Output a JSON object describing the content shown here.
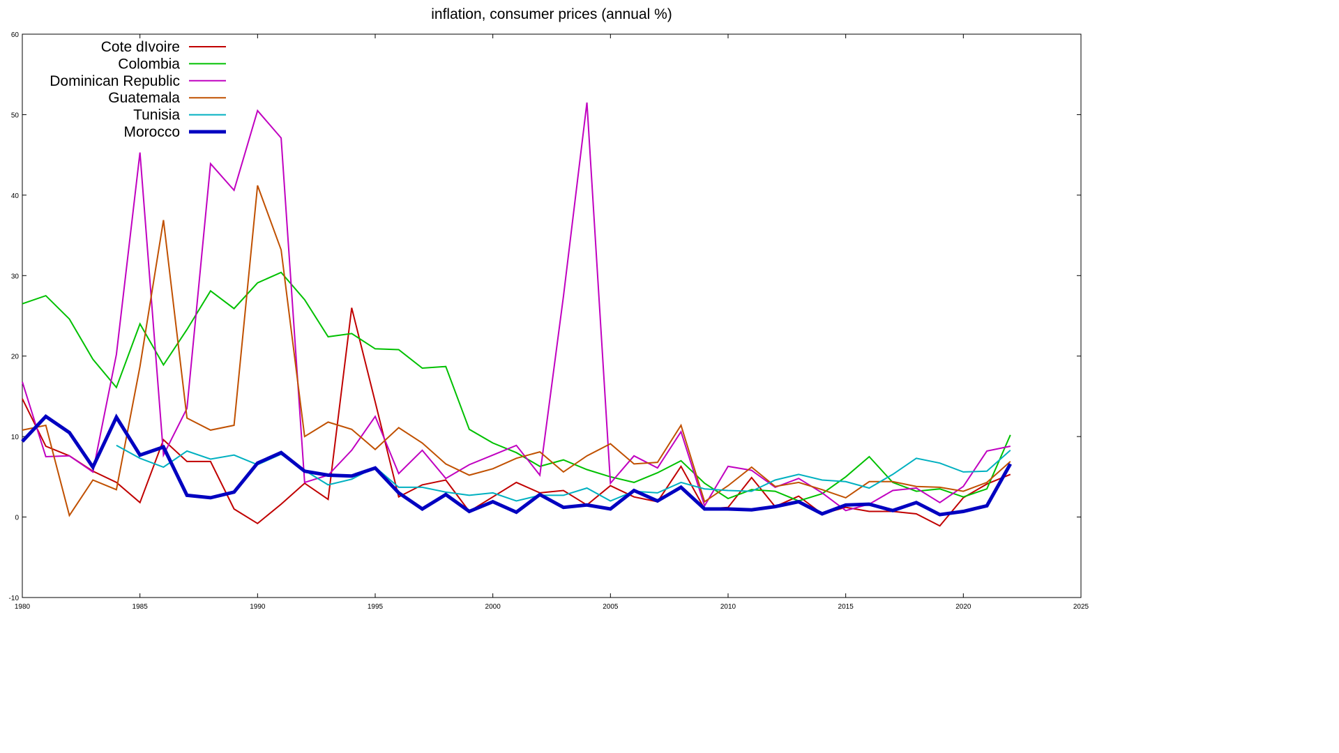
{
  "chart_data": {
    "type": "line",
    "title": "inflation, consumer prices (annual %)",
    "xlabel": "",
    "ylabel": "",
    "xlim": [
      1980,
      2025
    ],
    "ylim": [
      -10,
      60
    ],
    "x_ticks": [
      1980,
      1985,
      1990,
      1995,
      2000,
      2005,
      2010,
      2015,
      2020,
      2025
    ],
    "y_ticks": [
      -10,
      0,
      10,
      20,
      30,
      40,
      50,
      60
    ],
    "grid": false,
    "legend": "top-left",
    "series": [
      {
        "name": "Cote dIvoire",
        "color": "#c00000",
        "x": [
          1980,
          1981,
          1982,
          1983,
          1984,
          1985,
          1986,
          1987,
          1988,
          1989,
          1990,
          1991,
          1992,
          1993,
          1994,
          1995,
          1996,
          1997,
          1998,
          1999,
          2000,
          2001,
          2002,
          2003,
          2004,
          2005,
          2006,
          2007,
          2008,
          2009,
          2010,
          2011,
          2012,
          2013,
          2014,
          2015,
          2016,
          2017,
          2018,
          2019,
          2020,
          2021,
          2022
        ],
        "values": [
          14.7,
          8.8,
          7.6,
          5.7,
          4.3,
          1.8,
          9.6,
          6.9,
          6.9,
          1.0,
          -0.8,
          1.6,
          4.2,
          2.2,
          26.0,
          14.3,
          2.5,
          4.0,
          4.6,
          0.7,
          2.5,
          4.3,
          3.0,
          3.3,
          1.5,
          3.9,
          2.5,
          1.9,
          6.3,
          1.0,
          1.2,
          4.9,
          1.3,
          2.6,
          0.4,
          1.2,
          0.7,
          0.7,
          0.4,
          -1.1,
          2.4,
          4.1,
          5.3
        ]
      },
      {
        "name": "Colombia",
        "color": "#00c000",
        "x": [
          1980,
          1981,
          1982,
          1983,
          1984,
          1985,
          1986,
          1987,
          1988,
          1989,
          1990,
          1991,
          1992,
          1993,
          1994,
          1995,
          1996,
          1997,
          1998,
          1999,
          2000,
          2001,
          2002,
          2003,
          2004,
          2005,
          2006,
          2007,
          2008,
          2009,
          2010,
          2011,
          2012,
          2013,
          2014,
          2015,
          2016,
          2017,
          2018,
          2019,
          2020,
          2021,
          2022
        ],
        "values": [
          26.5,
          27.5,
          24.6,
          19.6,
          16.1,
          24.0,
          18.9,
          23.3,
          28.1,
          25.9,
          29.1,
          30.4,
          27.0,
          22.4,
          22.8,
          20.9,
          20.8,
          18.5,
          18.7,
          10.9,
          9.2,
          8.0,
          6.3,
          7.1,
          5.9,
          5.0,
          4.3,
          5.5,
          7.0,
          4.2,
          2.3,
          3.4,
          3.2,
          2.0,
          2.9,
          5.0,
          7.5,
          4.3,
          3.2,
          3.5,
          2.5,
          3.5,
          10.2
        ]
      },
      {
        "name": "Dominican Republic",
        "color": "#c000c0",
        "x": [
          1980,
          1981,
          1982,
          1983,
          1984,
          1985,
          1986,
          1987,
          1988,
          1989,
          1990,
          1991,
          1992,
          1993,
          1994,
          1995,
          1996,
          1997,
          1998,
          1999,
          2000,
          2001,
          2002,
          2003,
          2004,
          2005,
          2006,
          2007,
          2008,
          2009,
          2010,
          2011,
          2012,
          2013,
          2014,
          2015,
          2016,
          2017,
          2018,
          2019,
          2020,
          2021,
          2022
        ],
        "values": [
          16.8,
          7.5,
          7.6,
          5.6,
          20.2,
          45.3,
          7.7,
          13.5,
          43.9,
          40.6,
          50.5,
          47.1,
          4.3,
          5.2,
          8.3,
          12.5,
          5.4,
          8.3,
          4.8,
          6.5,
          7.7,
          8.9,
          5.2,
          27.4,
          51.5,
          4.2,
          7.6,
          6.1,
          10.6,
          1.4,
          6.3,
          5.8,
          3.7,
          4.8,
          3.0,
          0.8,
          1.6,
          3.3,
          3.6,
          1.8,
          3.8,
          8.2,
          8.8
        ]
      },
      {
        "name": "Guatemala",
        "color": "#c05000",
        "x": [
          1980,
          1981,
          1982,
          1983,
          1984,
          1985,
          1986,
          1987,
          1988,
          1989,
          1990,
          1991,
          1992,
          1993,
          1994,
          1995,
          1996,
          1997,
          1998,
          1999,
          2000,
          2001,
          2002,
          2003,
          2004,
          2005,
          2006,
          2007,
          2008,
          2009,
          2010,
          2011,
          2012,
          2013,
          2014,
          2015,
          2016,
          2017,
          2018,
          2019,
          2020,
          2021,
          2022
        ],
        "values": [
          10.8,
          11.4,
          0.2,
          4.6,
          3.4,
          18.7,
          36.9,
          12.3,
          10.8,
          11.4,
          41.2,
          33.2,
          10.0,
          11.8,
          10.9,
          8.4,
          11.1,
          9.2,
          6.6,
          5.2,
          6.0,
          7.3,
          8.1,
          5.6,
          7.6,
          9.1,
          6.6,
          6.8,
          11.4,
          1.9,
          3.9,
          6.2,
          3.8,
          4.3,
          3.4,
          2.4,
          4.4,
          4.4,
          3.8,
          3.7,
          3.2,
          4.3,
          6.9
        ]
      },
      {
        "name": "Tunisia",
        "color": "#00b0c0",
        "x": [
          1984,
          1985,
          1986,
          1987,
          1988,
          1989,
          1990,
          1991,
          1992,
          1993,
          1994,
          1995,
          1996,
          1997,
          1998,
          1999,
          2000,
          2001,
          2002,
          2003,
          2004,
          2005,
          2006,
          2007,
          2008,
          2009,
          2010,
          2011,
          2012,
          2013,
          2014,
          2015,
          2016,
          2017,
          2018,
          2019,
          2020,
          2021,
          2022
        ],
        "values": [
          8.9,
          7.3,
          6.2,
          8.2,
          7.2,
          7.7,
          6.5,
          7.8,
          5.8,
          4.0,
          4.7,
          6.2,
          3.7,
          3.7,
          3.1,
          2.7,
          3.0,
          2.0,
          2.7,
          2.7,
          3.6,
          2.0,
          3.2,
          3.0,
          4.3,
          3.5,
          3.3,
          3.2,
          4.6,
          5.3,
          4.6,
          4.4,
          3.6,
          5.3,
          7.3,
          6.7,
          5.6,
          5.7,
          8.3
        ]
      },
      {
        "name": "Morocco",
        "color": "#0000c0",
        "x": [
          1980,
          1981,
          1982,
          1983,
          1984,
          1985,
          1986,
          1987,
          1988,
          1989,
          1990,
          1991,
          1992,
          1993,
          1994,
          1995,
          1996,
          1997,
          1998,
          1999,
          2000,
          2001,
          2002,
          2003,
          2004,
          2005,
          2006,
          2007,
          2008,
          2009,
          2010,
          2011,
          2012,
          2013,
          2014,
          2015,
          2016,
          2017,
          2018,
          2019,
          2020,
          2021,
          2022
        ],
        "values": [
          9.4,
          12.5,
          10.5,
          6.2,
          12.4,
          7.7,
          8.7,
          2.7,
          2.4,
          3.1,
          6.7,
          8.0,
          5.7,
          5.2,
          5.1,
          6.1,
          3.0,
          1.0,
          2.8,
          0.7,
          1.9,
          0.6,
          2.8,
          1.2,
          1.5,
          1.0,
          3.3,
          2.0,
          3.7,
          1.0,
          1.0,
          0.9,
          1.3,
          1.9,
          0.4,
          1.5,
          1.6,
          0.8,
          1.8,
          0.3,
          0.7,
          1.4,
          6.6
        ]
      }
    ]
  }
}
